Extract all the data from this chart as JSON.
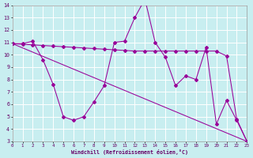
{
  "xlabel": "Windchill (Refroidissement éolien,°C)",
  "xlim": [
    0,
    23
  ],
  "ylim": [
    3,
    14
  ],
  "yticks": [
    3,
    4,
    5,
    6,
    7,
    8,
    9,
    10,
    11,
    12,
    13,
    14
  ],
  "xticks": [
    0,
    1,
    2,
    3,
    4,
    5,
    6,
    7,
    8,
    9,
    10,
    11,
    12,
    13,
    14,
    15,
    16,
    17,
    18,
    19,
    20,
    21,
    22,
    23
  ],
  "bg_color": "#c8eef0",
  "grid_color": "#b0dde0",
  "line_color": "#990099",
  "line1_x": [
    0,
    1,
    2,
    3,
    4,
    5,
    6,
    7,
    8,
    9,
    10,
    11,
    12,
    13,
    14,
    15,
    16,
    17,
    18,
    19,
    20,
    21,
    22,
    23
  ],
  "line1_y": [
    10.9,
    10.9,
    11.1,
    9.6,
    7.6,
    5.0,
    4.7,
    5.0,
    6.2,
    7.5,
    11.0,
    11.1,
    13.0,
    14.5,
    11.0,
    9.8,
    7.5,
    8.3,
    8.0,
    10.6,
    4.4,
    6.3,
    4.7,
    3.0
  ],
  "line2_x": [
    0,
    1,
    2,
    3,
    4,
    5,
    6,
    7,
    8,
    9,
    10,
    11,
    12,
    13,
    14,
    15,
    16,
    17,
    18,
    19,
    20,
    21,
    22,
    23
  ],
  "line2_y": [
    10.9,
    10.85,
    10.8,
    10.75,
    10.7,
    10.65,
    10.6,
    10.55,
    10.5,
    10.45,
    10.4,
    10.35,
    10.3,
    10.3,
    10.3,
    10.3,
    10.3,
    10.3,
    10.3,
    10.3,
    10.3,
    9.9,
    4.8,
    3.0
  ],
  "line3_x": [
    0,
    23
  ],
  "line3_y": [
    10.9,
    3.0
  ]
}
